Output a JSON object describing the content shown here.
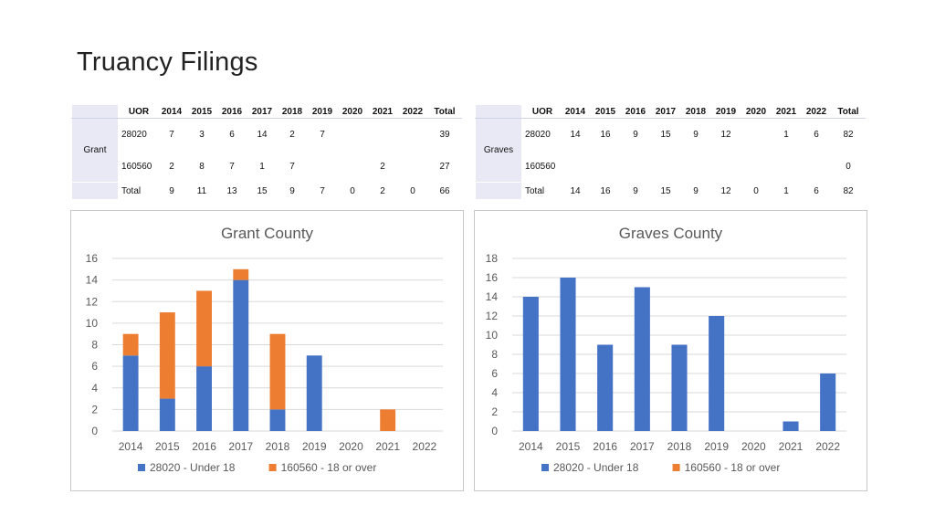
{
  "title": "Truancy Filings",
  "tables": [
    {
      "group": "Grant",
      "header": [
        "UOR",
        "2014",
        "2015",
        "2016",
        "2017",
        "2018",
        "2019",
        "2020",
        "2021",
        "2022",
        "Total"
      ],
      "rows": [
        [
          "28020",
          "7",
          "3",
          "6",
          "14",
          "2",
          "7",
          "",
          "",
          "",
          "39"
        ],
        [
          "160560",
          "2",
          "8",
          "7",
          "1",
          "7",
          "",
          "",
          "2",
          "",
          "27"
        ],
        [
          "Total",
          "9",
          "11",
          "13",
          "15",
          "9",
          "7",
          "0",
          "2",
          "0",
          "66"
        ]
      ]
    },
    {
      "group": "Graves",
      "header": [
        "UOR",
        "2014",
        "2015",
        "2016",
        "2017",
        "2018",
        "2019",
        "2020",
        "2021",
        "2022",
        "Total"
      ],
      "rows": [
        [
          "28020",
          "14",
          "16",
          "9",
          "15",
          "9",
          "12",
          "",
          "1",
          "6",
          "82"
        ],
        [
          "160560",
          "",
          "",
          "",
          "",
          "",
          "",
          "",
          "",
          "",
          "0"
        ],
        [
          "Total",
          "14",
          "16",
          "9",
          "15",
          "9",
          "12",
          "0",
          "1",
          "6",
          "82"
        ]
      ]
    }
  ],
  "colors": {
    "series1": "#4472C4",
    "series2": "#ED7D31",
    "grid": "#d9d9d9",
    "text": "#595959"
  },
  "chart_data": [
    {
      "type": "bar",
      "stacked": true,
      "title": "Grant County",
      "categories": [
        "2014",
        "2015",
        "2016",
        "2017",
        "2018",
        "2019",
        "2020",
        "2021",
        "2022"
      ],
      "series": [
        {
          "name": "28020 - Under 18",
          "values": [
            7,
            3,
            6,
            14,
            2,
            7,
            0,
            0,
            0
          ]
        },
        {
          "name": "160560 - 18 or over",
          "values": [
            2,
            8,
            7,
            1,
            7,
            0,
            0,
            2,
            0
          ]
        }
      ],
      "ylim": [
        0,
        16
      ],
      "yticks": [
        "0",
        "2",
        "4",
        "6",
        "8",
        "10",
        "12",
        "14",
        "16"
      ],
      "grid": true,
      "legend": "bottom"
    },
    {
      "type": "bar",
      "stacked": true,
      "title": "Graves County",
      "categories": [
        "2014",
        "2015",
        "2016",
        "2017",
        "2018",
        "2019",
        "2020",
        "2021",
        "2022"
      ],
      "series": [
        {
          "name": "28020 - Under 18",
          "values": [
            14,
            16,
            9,
            15,
            9,
            12,
            0,
            1,
            6
          ]
        },
        {
          "name": "160560 - 18 or over",
          "values": [
            0,
            0,
            0,
            0,
            0,
            0,
            0,
            0,
            0
          ]
        }
      ],
      "ylim": [
        0,
        18
      ],
      "yticks": [
        "0",
        "2",
        "4",
        "6",
        "8",
        "10",
        "12",
        "14",
        "16",
        "18"
      ],
      "grid": true,
      "legend": "bottom"
    }
  ]
}
